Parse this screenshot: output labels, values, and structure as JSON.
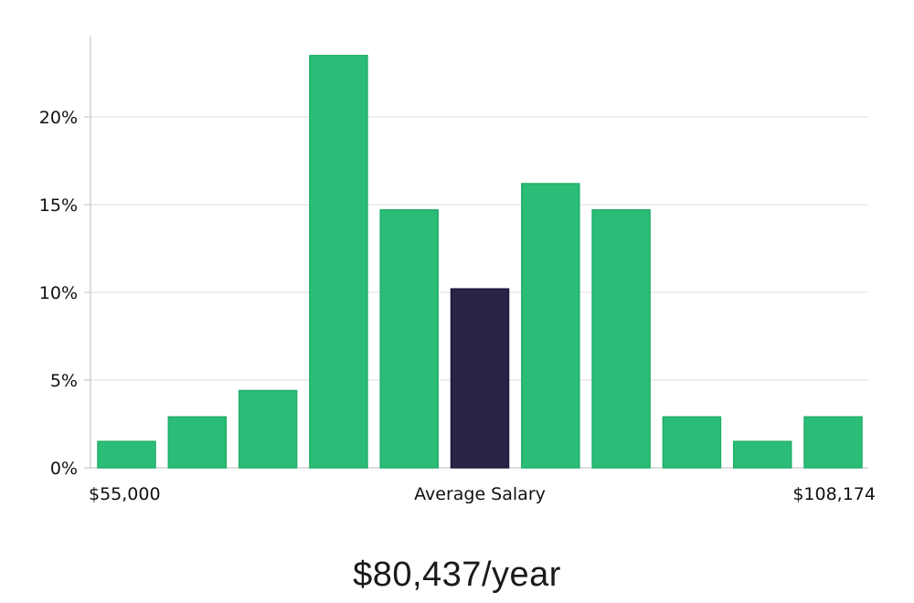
{
  "chart_data": {
    "type": "bar",
    "y_ticks": [
      "0%",
      "5%",
      "10%",
      "15%",
      "20%"
    ],
    "ylim": [
      0,
      25
    ],
    "values": [
      1.5,
      2.9,
      4.4,
      23.5,
      14.7,
      10.2,
      16.2,
      14.7,
      2.9,
      1.5,
      2.9
    ],
    "highlight_index": 5,
    "x_labels": {
      "left": "$55,000",
      "center": "Average Salary",
      "right": "$108,174"
    },
    "grid": true,
    "colors": {
      "bar": "#2bbd78",
      "bar_border": "#1fae69",
      "highlight": "#282446",
      "highlight_border": "#1c1838",
      "grid": "#dcdcdc",
      "axis": "#bdbdbd"
    }
  },
  "headline": "$80,437/year"
}
